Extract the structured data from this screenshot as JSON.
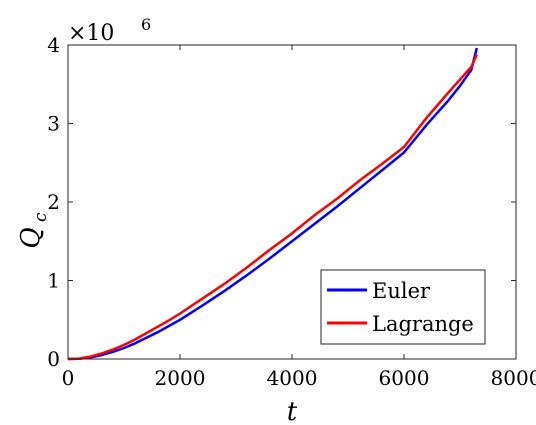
{
  "chart_data": {
    "type": "line",
    "xlabel": "t",
    "ylabel": "Q",
    "ylabel_sub": "c",
    "y_multiplier_text": "×10",
    "y_multiplier_exp": "6",
    "xlim": [
      0,
      8000
    ],
    "ylim": [
      0,
      4
    ],
    "x_ticks": [
      0,
      2000,
      4000,
      6000,
      8000
    ],
    "y_ticks": [
      0,
      1,
      2,
      3,
      4
    ],
    "grid": false,
    "legend_position": "bottom-right",
    "series": [
      {
        "name": "Euler",
        "color": "#0000ff",
        "x": [
          0,
          200,
          400,
          600,
          800,
          1000,
          1200,
          1400,
          1600,
          1800,
          2000,
          2400,
          2800,
          3200,
          3600,
          4000,
          4400,
          4800,
          5200,
          5600,
          6000,
          6400,
          6800,
          7000,
          7200,
          7300
        ],
        "y": [
          0,
          0.003,
          0.02,
          0.05,
          0.09,
          0.14,
          0.2,
          0.27,
          0.34,
          0.42,
          0.5,
          0.68,
          0.87,
          1.07,
          1.28,
          1.5,
          1.72,
          1.94,
          2.17,
          2.4,
          2.63,
          2.98,
          3.3,
          3.48,
          3.68,
          3.96
        ]
      },
      {
        "name": "Lagrange",
        "color": "#ff0000",
        "x": [
          0,
          200,
          400,
          600,
          800,
          1000,
          1200,
          1400,
          1600,
          1800,
          2000,
          2400,
          2800,
          3200,
          3600,
          4000,
          4400,
          4800,
          5200,
          5600,
          6000,
          6400,
          6800,
          7000,
          7200,
          7300
        ],
        "y": [
          0,
          0.005,
          0.03,
          0.07,
          0.12,
          0.18,
          0.25,
          0.33,
          0.41,
          0.49,
          0.58,
          0.77,
          0.96,
          1.17,
          1.39,
          1.6,
          1.83,
          2.04,
          2.27,
          2.48,
          2.7,
          3.07,
          3.4,
          3.56,
          3.72,
          3.88
        ]
      }
    ]
  }
}
